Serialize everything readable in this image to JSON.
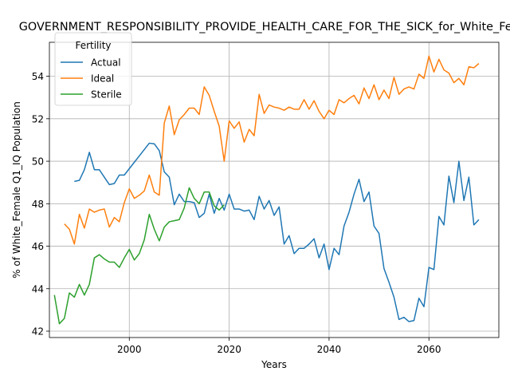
{
  "chart_data": {
    "type": "line",
    "title": "GOVERNMENT_RESPONSIBILITY_PROVIDE_HEALTH_CARE_FOR_THE_SICK_for_White_Female",
    "xlabel": "Years",
    "ylabel": "% of White_Female Q1_IQ Population",
    "xlim": [
      1984,
      2074
    ],
    "ylim": [
      41.7,
      55.6
    ],
    "xticks": [
      2000,
      2020,
      2040,
      2060
    ],
    "yticks": [
      42,
      44,
      46,
      48,
      50,
      52,
      54
    ],
    "grid": true,
    "legend": {
      "title": "Fertility",
      "placement": "top-left"
    },
    "series": [
      {
        "name": "Actual",
        "color": "#1f77b4",
        "x": [
          1989,
          1990,
          1991,
          1992,
          1993,
          1994,
          1995,
          1996,
          1997,
          1998,
          1999,
          2000,
          2001,
          2002,
          2003,
          2004,
          2005,
          2006,
          2007,
          2008,
          2009,
          2010,
          2011,
          2012,
          2013,
          2014,
          2015,
          2016,
          2017,
          2018,
          2019,
          2020,
          2021,
          2022,
          2023,
          2024,
          2025,
          2026,
          2027,
          2028,
          2029,
          2030,
          2031,
          2032,
          2033,
          2034,
          2035,
          2036,
          2037,
          2038,
          2039,
          2040,
          2041,
          2042,
          2043,
          2044,
          2045,
          2046,
          2047,
          2048,
          2049,
          2050,
          2051,
          2052,
          2053,
          2054,
          2055,
          2056,
          2057,
          2058,
          2059,
          2060,
          2061,
          2062,
          2063,
          2064,
          2065,
          2066,
          2067,
          2068,
          2069,
          2070
        ],
        "values": [
          49.05,
          49.1,
          49.6,
          50.42,
          49.6,
          49.6,
          49.25,
          48.9,
          48.95,
          49.35,
          49.35,
          49.65,
          49.95,
          50.25,
          50.55,
          50.85,
          50.82,
          50.5,
          49.5,
          49.25,
          47.95,
          48.45,
          48.1,
          48.1,
          48.05,
          47.35,
          47.55,
          48.45,
          47.55,
          48.25,
          47.7,
          48.45,
          47.75,
          47.75,
          47.65,
          47.7,
          47.25,
          48.35,
          47.75,
          48.15,
          47.45,
          47.85,
          46.1,
          46.5,
          45.65,
          45.9,
          45.9,
          46.1,
          46.35,
          45.45,
          46.1,
          44.9,
          45.9,
          45.6,
          46.95,
          47.6,
          48.45,
          49.15,
          48.1,
          48.55,
          46.95,
          46.6,
          44.95,
          44.3,
          43.6,
          42.55,
          42.65,
          42.45,
          42.5,
          43.55,
          43.15,
          45.0,
          44.9,
          47.4,
          47.0,
          49.3,
          48.05,
          50.0,
          48.15,
          49.25,
          47.0,
          47.25
        ]
      },
      {
        "name": "Ideal",
        "color": "#ff7f0e",
        "x": [
          1987,
          1988,
          1989,
          1990,
          1991,
          1992,
          1993,
          1994,
          1995,
          1996,
          1997,
          1998,
          1999,
          2000,
          2001,
          2002,
          2003,
          2004,
          2005,
          2006,
          2007,
          2008,
          2009,
          2010,
          2011,
          2012,
          2013,
          2014,
          2015,
          2016,
          2017,
          2018,
          2019,
          2020,
          2021,
          2022,
          2023,
          2024,
          2025,
          2026,
          2027,
          2028,
          2029,
          2030,
          2031,
          2032,
          2033,
          2034,
          2035,
          2036,
          2037,
          2038,
          2039,
          2040,
          2041,
          2042,
          2043,
          2044,
          2045,
          2046,
          2047,
          2048,
          2049,
          2050,
          2051,
          2052,
          2053,
          2054,
          2055,
          2056,
          2057,
          2058,
          2059,
          2060,
          2061,
          2062,
          2063,
          2064,
          2065,
          2066,
          2067,
          2068,
          2069,
          2070
        ],
        "values": [
          47.05,
          46.8,
          46.1,
          47.5,
          46.85,
          47.75,
          47.6,
          47.7,
          47.75,
          46.9,
          47.35,
          47.15,
          48.05,
          48.7,
          48.25,
          48.4,
          48.6,
          49.35,
          48.55,
          48.4,
          51.8,
          52.6,
          51.25,
          51.95,
          52.2,
          52.5,
          52.5,
          52.2,
          53.5,
          53.1,
          52.35,
          51.65,
          50.0,
          51.9,
          51.55,
          51.85,
          50.9,
          51.5,
          51.2,
          53.15,
          52.25,
          52.65,
          52.55,
          52.5,
          52.4,
          52.55,
          52.45,
          52.45,
          52.9,
          52.45,
          52.85,
          52.35,
          52.0,
          52.4,
          52.2,
          52.9,
          52.75,
          52.95,
          53.1,
          52.7,
          53.45,
          52.95,
          53.6,
          52.9,
          53.35,
          52.95,
          53.95,
          53.15,
          53.4,
          53.5,
          53.4,
          54.1,
          53.9,
          54.95,
          54.2,
          54.8,
          54.3,
          54.15,
          53.7,
          53.9,
          53.6,
          54.45,
          54.4,
          54.6
        ]
      },
      {
        "name": "Sterile",
        "color": "#2ca02c",
        "x": [
          1985,
          1986,
          1987,
          1988,
          1989,
          1990,
          1991,
          1992,
          1993,
          1994,
          1995,
          1996,
          1997,
          1998,
          1999,
          2000,
          2001,
          2002,
          2003,
          2004,
          2005,
          2006,
          2007,
          2008,
          2009,
          2010,
          2011,
          2012,
          2013,
          2014,
          2015,
          2016,
          2017,
          2018,
          2019
        ],
        "values": [
          43.7,
          42.35,
          42.6,
          43.8,
          43.6,
          44.2,
          43.7,
          44.2,
          45.45,
          45.6,
          45.4,
          45.25,
          45.25,
          45.0,
          45.45,
          45.85,
          45.35,
          45.65,
          46.3,
          47.5,
          46.8,
          46.25,
          46.9,
          47.15,
          47.2,
          47.25,
          47.8,
          48.75,
          48.25,
          48.0,
          48.55,
          48.55,
          47.9,
          47.7,
          47.95
        ]
      }
    ]
  }
}
